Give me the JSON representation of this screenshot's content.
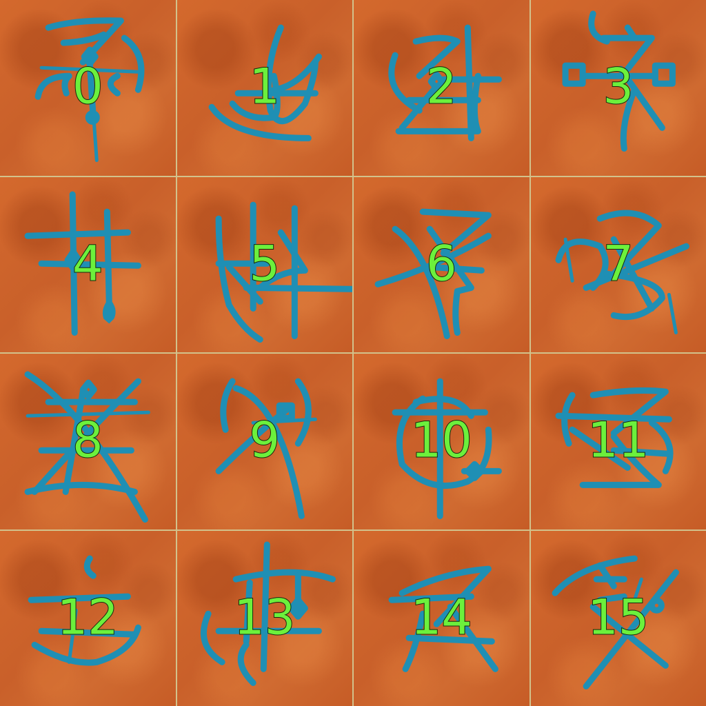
{
  "colors": {
    "glyph": "#1f8fb4",
    "label": "#6cf03c",
    "tile_base": "#cc652c",
    "grid_line": "#d2c28c"
  },
  "tiles": [
    {
      "label": "0",
      "glyph": "rune-0-icon"
    },
    {
      "label": "1",
      "glyph": "rune-1-icon"
    },
    {
      "label": "2",
      "glyph": "rune-2-icon"
    },
    {
      "label": "3",
      "glyph": "rune-3-icon"
    },
    {
      "label": "4",
      "glyph": "rune-4-icon"
    },
    {
      "label": "5",
      "glyph": "rune-5-icon"
    },
    {
      "label": "6",
      "glyph": "rune-6-icon"
    },
    {
      "label": "7",
      "glyph": "rune-7-icon"
    },
    {
      "label": "8",
      "glyph": "rune-8-icon"
    },
    {
      "label": "9",
      "glyph": "rune-9-icon"
    },
    {
      "label": "10",
      "glyph": "rune-10-icon"
    },
    {
      "label": "11",
      "glyph": "rune-11-icon"
    },
    {
      "label": "12",
      "glyph": "rune-12-icon"
    },
    {
      "label": "13",
      "glyph": "rune-13-icon"
    },
    {
      "label": "14",
      "glyph": "rune-14-icon"
    },
    {
      "label": "15",
      "glyph": "rune-15-icon"
    }
  ]
}
